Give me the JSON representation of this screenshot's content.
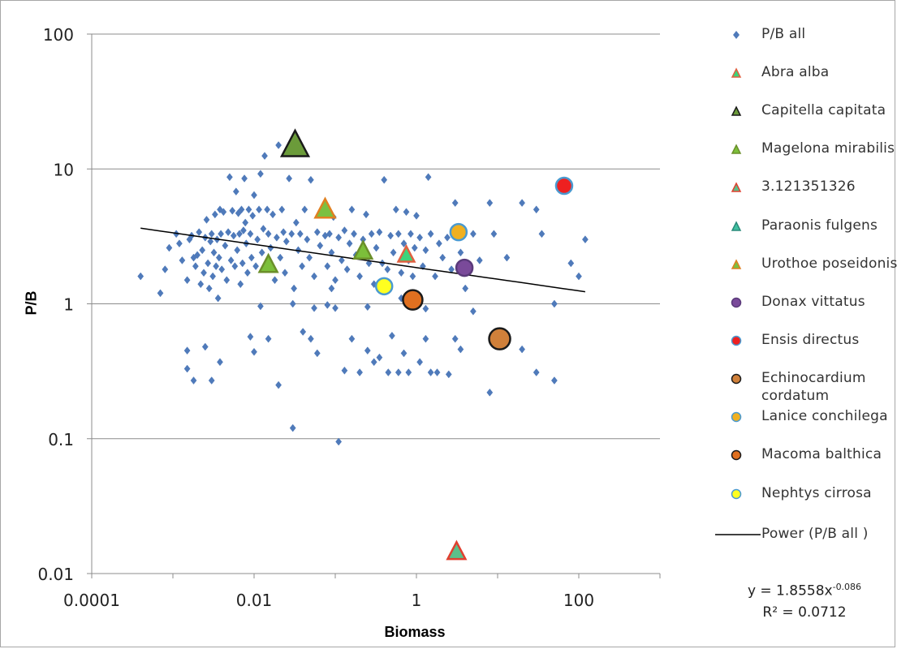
{
  "chart_data": {
    "type": "scatter",
    "xlabel": "Biomass",
    "ylabel": "P/B",
    "xscale": "log",
    "yscale": "log",
    "xlim": [
      0.0001,
      1000
    ],
    "ylim": [
      0.01,
      100
    ],
    "x_ticks": [
      "0.0001",
      "0.01",
      "1",
      "100"
    ],
    "y_ticks": [
      "100",
      "10",
      "1",
      "0.1",
      "0.01"
    ],
    "grid": "horizontal",
    "legend_position": "right",
    "series": [
      {
        "name": "P/B all",
        "marker": "diamond",
        "color": "#4f7aba",
        "points": [
          [
            0.0004,
            1.6
          ],
          [
            0.0007,
            1.2
          ],
          [
            0.0008,
            1.8
          ],
          [
            0.0009,
            2.6
          ],
          [
            0.0011,
            3.3
          ],
          [
            0.0012,
            2.8
          ],
          [
            0.0013,
            2.1
          ],
          [
            0.0015,
            1.5
          ],
          [
            0.0016,
            3.0
          ],
          [
            0.0017,
            3.2
          ],
          [
            0.0018,
            2.2
          ],
          [
            0.0019,
            1.9
          ],
          [
            0.002,
            2.3
          ],
          [
            0.0021,
            3.4
          ],
          [
            0.0022,
            1.4
          ],
          [
            0.0023,
            2.5
          ],
          [
            0.0024,
            1.7
          ],
          [
            0.0025,
            3.1
          ],
          [
            0.0026,
            4.2
          ],
          [
            0.0027,
            2.0
          ],
          [
            0.0028,
            1.3
          ],
          [
            0.0029,
            2.9
          ],
          [
            0.003,
            3.3
          ],
          [
            0.0031,
            1.6
          ],
          [
            0.0032,
            2.4
          ],
          [
            0.0033,
            4.6
          ],
          [
            0.0034,
            1.9
          ],
          [
            0.0035,
            3.0
          ],
          [
            0.0036,
            1.1
          ],
          [
            0.0037,
            2.2
          ],
          [
            0.0038,
            5.0
          ],
          [
            0.0039,
            3.3
          ],
          [
            0.004,
            1.8
          ],
          [
            0.0042,
            4.8
          ],
          [
            0.0044,
            2.7
          ],
          [
            0.0046,
            1.5
          ],
          [
            0.0048,
            3.4
          ],
          [
            0.005,
            8.7
          ],
          [
            0.0052,
            2.1
          ],
          [
            0.0054,
            4.9
          ],
          [
            0.0056,
            3.2
          ],
          [
            0.0058,
            1.9
          ],
          [
            0.006,
            6.8
          ],
          [
            0.0062,
            2.5
          ],
          [
            0.0064,
            4.7
          ],
          [
            0.0066,
            3.3
          ],
          [
            0.0068,
            1.4
          ],
          [
            0.007,
            5.0
          ],
          [
            0.0072,
            2.0
          ],
          [
            0.0074,
            3.5
          ],
          [
            0.0076,
            8.5
          ],
          [
            0.0078,
            4.0
          ],
          [
            0.008,
            2.8
          ],
          [
            0.0083,
            1.7
          ],
          [
            0.0086,
            5.0
          ],
          [
            0.009,
            3.3
          ],
          [
            0.0093,
            2.2
          ],
          [
            0.0096,
            4.5
          ],
          [
            0.01,
            6.4
          ],
          [
            0.0105,
            1.9
          ],
          [
            0.011,
            3.0
          ],
          [
            0.0115,
            5.0
          ],
          [
            0.012,
            9.2
          ],
          [
            0.0125,
            2.4
          ],
          [
            0.013,
            3.6
          ],
          [
            0.0135,
            12.5
          ],
          [
            0.014,
            1.8
          ],
          [
            0.0145,
            5.0
          ],
          [
            0.015,
            3.3
          ],
          [
            0.016,
            2.6
          ],
          [
            0.017,
            4.6
          ],
          [
            0.018,
            1.5
          ],
          [
            0.019,
            3.1
          ],
          [
            0.02,
            15.0
          ],
          [
            0.021,
            2.2
          ],
          [
            0.022,
            5.0
          ],
          [
            0.023,
            3.4
          ],
          [
            0.024,
            1.7
          ],
          [
            0.025,
            2.9
          ],
          [
            0.027,
            8.5
          ],
          [
            0.029,
            3.3
          ],
          [
            0.031,
            1.3
          ],
          [
            0.033,
            4.0
          ],
          [
            0.035,
            2.5
          ],
          [
            0.037,
            3.3
          ],
          [
            0.039,
            1.9
          ],
          [
            0.042,
            5.0
          ],
          [
            0.045,
            3.0
          ],
          [
            0.048,
            2.2
          ],
          [
            0.05,
            8.3
          ],
          [
            0.055,
            1.6
          ],
          [
            0.06,
            3.4
          ],
          [
            0.065,
            2.7
          ],
          [
            0.07,
            5.0
          ],
          [
            0.075,
            3.2
          ],
          [
            0.08,
            1.9
          ],
          [
            0.085,
            3.3
          ],
          [
            0.09,
            2.4
          ],
          [
            0.095,
            4.4
          ],
          [
            0.1,
            1.5
          ],
          [
            0.11,
            3.1
          ],
          [
            0.12,
            2.1
          ],
          [
            0.13,
            3.5
          ],
          [
            0.14,
            1.8
          ],
          [
            0.15,
            2.8
          ],
          [
            0.16,
            5.0
          ],
          [
            0.17,
            3.3
          ],
          [
            0.18,
            2.3
          ],
          [
            0.2,
            1.6
          ],
          [
            0.22,
            3.0
          ],
          [
            0.24,
            4.6
          ],
          [
            0.26,
            2.0
          ],
          [
            0.28,
            3.3
          ],
          [
            0.3,
            1.4
          ],
          [
            0.32,
            2.6
          ],
          [
            0.35,
            3.4
          ],
          [
            0.38,
            2.0
          ],
          [
            0.4,
            8.3
          ],
          [
            0.44,
            1.8
          ],
          [
            0.48,
            3.2
          ],
          [
            0.52,
            2.4
          ],
          [
            0.56,
            5.0
          ],
          [
            0.6,
            3.3
          ],
          [
            0.65,
            1.7
          ],
          [
            0.7,
            2.8
          ],
          [
            0.75,
            4.8
          ],
          [
            0.8,
            2.1
          ],
          [
            0.85,
            3.3
          ],
          [
            0.9,
            1.6
          ],
          [
            0.95,
            2.6
          ],
          [
            1.0,
            4.5
          ],
          [
            1.1,
            3.1
          ],
          [
            1.2,
            1.9
          ],
          [
            1.3,
            2.5
          ],
          [
            1.4,
            8.7
          ],
          [
            1.5,
            3.3
          ],
          [
            1.7,
            1.6
          ],
          [
            1.9,
            2.8
          ],
          [
            2.1,
            2.2
          ],
          [
            2.4,
            3.1
          ],
          [
            2.7,
            1.8
          ],
          [
            3.0,
            5.6
          ],
          [
            3.5,
            2.4
          ],
          [
            4.0,
            1.7
          ],
          [
            5.0,
            3.3
          ],
          [
            6.0,
            2.1
          ],
          [
            8.0,
            5.6
          ],
          [
            9.0,
            3.3
          ],
          [
            13.0,
            2.2
          ],
          [
            20.0,
            5.6
          ],
          [
            30.0,
            5.0
          ],
          [
            35.0,
            3.3
          ],
          [
            50.0,
            1.0
          ],
          [
            80.0,
            2.0
          ],
          [
            100.0,
            1.6
          ],
          [
            120.0,
            3.0
          ],
          [
            0.0015,
            0.45
          ],
          [
            0.0015,
            0.33
          ],
          [
            0.0018,
            0.27
          ],
          [
            0.0025,
            0.48
          ],
          [
            0.003,
            0.27
          ],
          [
            0.0038,
            0.37
          ],
          [
            0.009,
            0.57
          ],
          [
            0.01,
            0.44
          ],
          [
            0.012,
            0.96
          ],
          [
            0.015,
            0.55
          ],
          [
            0.02,
            0.25
          ],
          [
            0.03,
            0.12
          ],
          [
            0.04,
            0.62
          ],
          [
            0.05,
            0.55
          ],
          [
            0.06,
            0.43
          ],
          [
            0.08,
            0.98
          ],
          [
            0.1,
            0.93
          ],
          [
            0.11,
            0.095
          ],
          [
            0.13,
            0.32
          ],
          [
            0.16,
            0.55
          ],
          [
            0.2,
            0.31
          ],
          [
            0.25,
            0.45
          ],
          [
            0.3,
            0.37
          ],
          [
            0.35,
            0.4
          ],
          [
            0.45,
            0.31
          ],
          [
            0.5,
            0.58
          ],
          [
            0.6,
            0.31
          ],
          [
            0.7,
            0.43
          ],
          [
            0.8,
            0.31
          ],
          [
            1.1,
            0.37
          ],
          [
            1.3,
            0.55
          ],
          [
            1.5,
            0.31
          ],
          [
            1.8,
            0.31
          ],
          [
            2.5,
            0.3
          ],
          [
            3.0,
            0.55
          ],
          [
            3.5,
            0.46
          ],
          [
            5.0,
            0.88
          ],
          [
            8.0,
            0.22
          ],
          [
            20.0,
            0.46
          ],
          [
            30.0,
            0.31
          ],
          [
            50.0,
            0.27
          ],
          [
            0.055,
            0.93
          ],
          [
            0.65,
            1.1
          ],
          [
            1.3,
            0.92
          ],
          [
            4.0,
            1.3
          ],
          [
            0.25,
            0.95
          ],
          [
            0.09,
            1.3
          ],
          [
            0.03,
            1.0
          ]
        ]
      },
      {
        "name": "Abra alba",
        "marker": "triangle",
        "fill": "#3dd47a",
        "stroke": "#e06040",
        "size": 18,
        "points": [
          [
            0.75,
            2.3
          ]
        ]
      },
      {
        "name": "Capitella capitata",
        "marker": "triangle",
        "fill": "#6b9b3a",
        "stroke": "#1a1a1a",
        "size": 30,
        "points": [
          [
            0.032,
            15.0
          ]
        ]
      },
      {
        "name": "Magelona mirabilis",
        "marker": "triangle",
        "fill": "#7cbf3a",
        "stroke": "#6b8f2a",
        "size": 20,
        "points": [
          [
            0.015,
            1.95
          ],
          [
            0.22,
            2.45
          ]
        ]
      },
      {
        "name": "3.121351326",
        "marker": "triangle",
        "fill": "#5bbf8a",
        "stroke": "#e04030",
        "size": 20,
        "points": [
          [
            3.12,
            0.0145
          ]
        ]
      },
      {
        "name": "Paraonis fulgens",
        "marker": "triangle",
        "fill": "#40c0a0",
        "stroke": "#2a8a7a",
        "size": 16,
        "points": []
      },
      {
        "name": "Urothoe poseidonis",
        "marker": "triangle",
        "fill": "#7bc040",
        "stroke": "#e08020",
        "size": 22,
        "points": [
          [
            0.075,
            5.0
          ]
        ]
      },
      {
        "name": "Donax vittatus",
        "marker": "circle",
        "fill": "#7a4a9a",
        "stroke": "#5a3a7a",
        "size": 20,
        "points": [
          [
            3.9,
            1.85
          ]
        ]
      },
      {
        "name": "Ensis directus",
        "marker": "circle",
        "fill": "#ee2020",
        "stroke": "#4a9ad0",
        "size": 20,
        "points": [
          [
            66.0,
            7.5
          ]
        ]
      },
      {
        "name": "Echinocardium cordatum",
        "marker": "circle",
        "fill": "#d0803a",
        "stroke": "#1a1a1a",
        "size": 26,
        "points": [
          [
            10.6,
            0.55
          ]
        ]
      },
      {
        "name": "Lanice conchilega",
        "marker": "circle",
        "fill": "#f0b020",
        "stroke": "#4a9ad0",
        "size": 20,
        "points": [
          [
            3.3,
            3.4
          ]
        ]
      },
      {
        "name": "Macoma balthica",
        "marker": "circle",
        "fill": "#e07020",
        "stroke": "#1a1a1a",
        "size": 24,
        "points": [
          [
            0.9,
            1.07
          ]
        ]
      },
      {
        "name": "Nephtys cirrosa",
        "marker": "circle",
        "fill": "#ffff20",
        "stroke": "#4a9ad0",
        "size": 20,
        "points": [
          [
            0.4,
            1.35
          ]
        ]
      }
    ],
    "trendline": {
      "name": "Power (P/B all )",
      "type": "power",
      "a": 1.8558,
      "b": -0.086,
      "x_range": [
        0.0004,
        120
      ],
      "color": "#000000"
    },
    "equation": {
      "text": "y = 1.8558x",
      "exponent": "-0.086",
      "r2": "R² = 0.0712"
    }
  },
  "legend": [
    {
      "label": "P/B all",
      "marker": "diamond",
      "fill": "#4f7aba",
      "stroke": "#4f7aba"
    },
    {
      "label": "Abra alba",
      "marker": "triangle",
      "fill": "#3dd47a",
      "stroke": "#e06040"
    },
    {
      "label": "Capitella capitata",
      "marker": "triangle",
      "fill": "#6b9b3a",
      "stroke": "#1a1a1a"
    },
    {
      "label": "Magelona mirabilis",
      "marker": "triangle",
      "fill": "#7cbf3a",
      "stroke": "#6b8f2a"
    },
    {
      "label": "3.121351326",
      "marker": "triangle",
      "fill": "#5bbf8a",
      "stroke": "#e04030"
    },
    {
      "label": "Paraonis fulgens",
      "marker": "triangle",
      "fill": "#40c0a0",
      "stroke": "#2a8a7a"
    },
    {
      "label": "Urothoe poseidonis",
      "marker": "triangle",
      "fill": "#7bc040",
      "stroke": "#e08020"
    },
    {
      "label": "Donax vittatus",
      "marker": "circle",
      "fill": "#7a4a9a",
      "stroke": "#5a3a7a"
    },
    {
      "label": "Ensis directus",
      "marker": "circle",
      "fill": "#ee2020",
      "stroke": "#4a9ad0"
    },
    {
      "label": "Echinocardium cordatum",
      "marker": "circle",
      "fill": "#d0803a",
      "stroke": "#1a1a1a"
    },
    {
      "label": "Lanice conchilega",
      "marker": "circle",
      "fill": "#f0b020",
      "stroke": "#4a9ad0"
    },
    {
      "label": "Macoma balthica",
      "marker": "circle",
      "fill": "#e07020",
      "stroke": "#1a1a1a"
    },
    {
      "label": "Nephtys cirrosa",
      "marker": "circle",
      "fill": "#ffff20",
      "stroke": "#4a9ad0"
    },
    {
      "label": "Power (P/B all )",
      "marker": "line",
      "fill": "#000000",
      "stroke": "#000000"
    }
  ]
}
